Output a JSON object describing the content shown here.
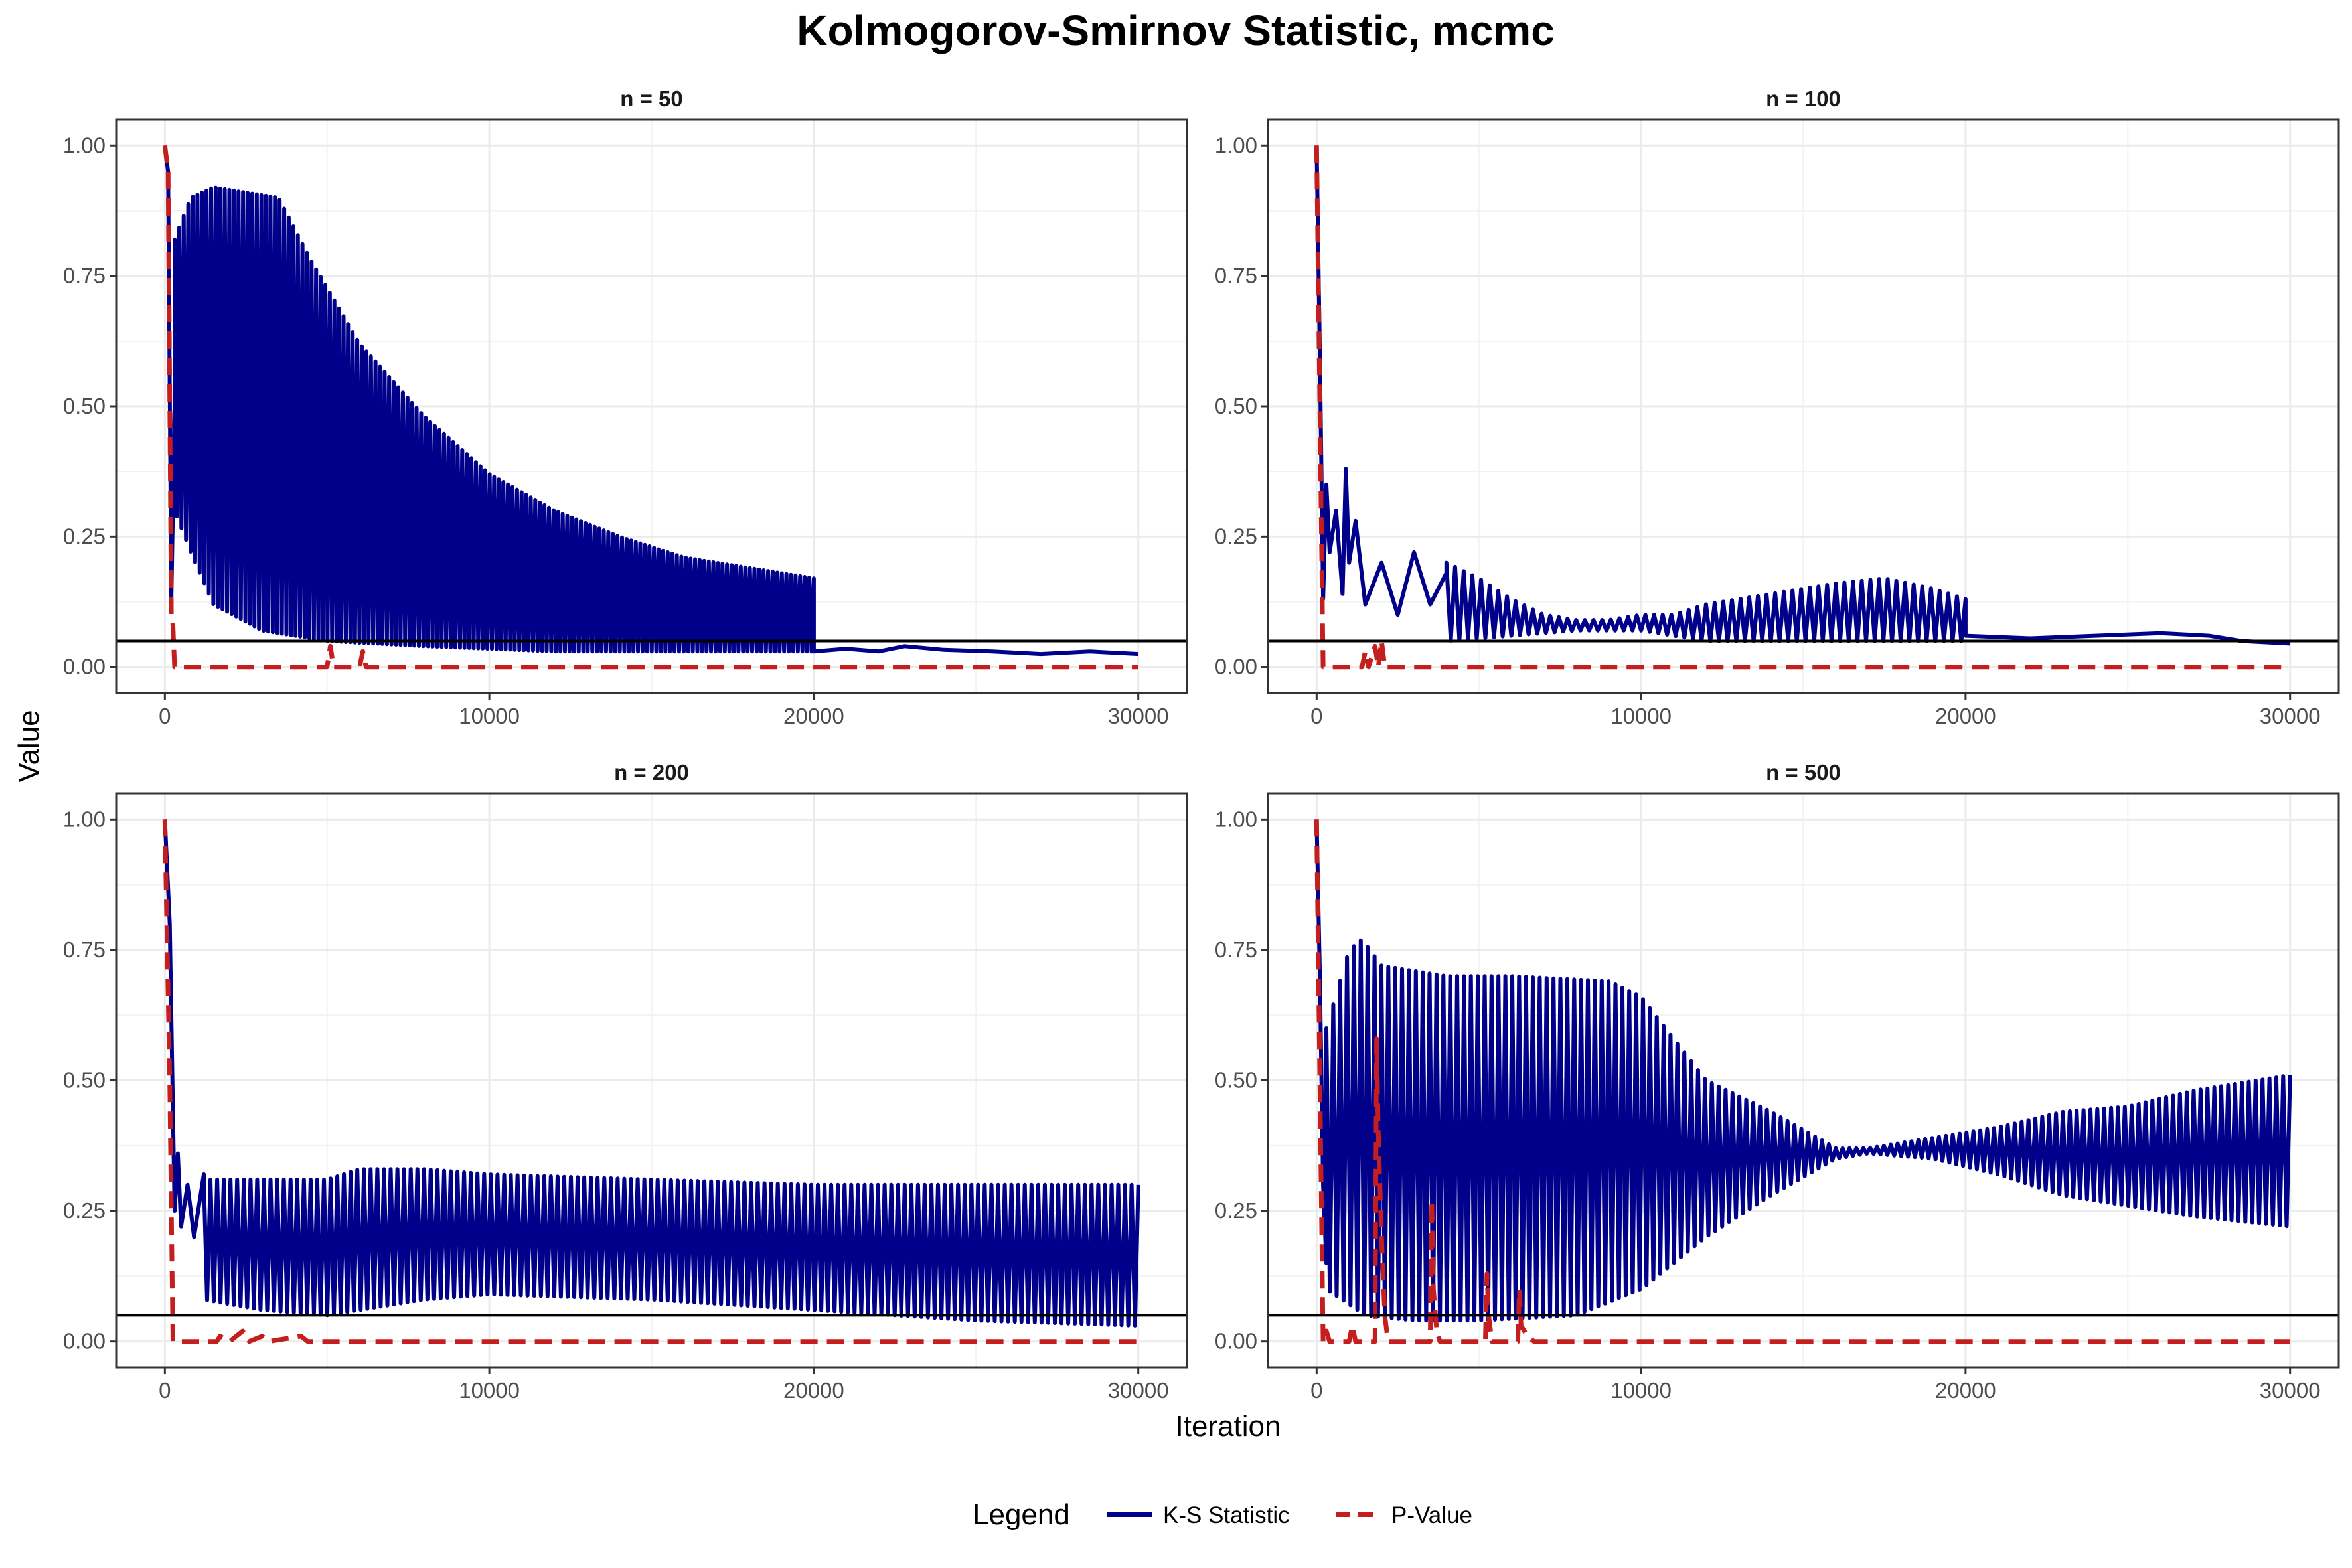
{
  "chart_data": {
    "type": "line",
    "title": "Kolmogorov-Smirnov Statistic, mcmc",
    "xlabel": "Iteration",
    "ylabel": "Value",
    "xlim": [
      -1500,
      31500
    ],
    "ylim": [
      -0.05,
      1.05
    ],
    "x_ticks": [
      0,
      10000,
      20000,
      30000
    ],
    "x_tick_labels": [
      "0",
      "10000",
      "20000",
      "30000"
    ],
    "y_ticks": [
      0,
      0.25,
      0.5,
      0.75,
      1.0
    ],
    "y_tick_labels": [
      "0.00",
      "0.25",
      "0.50",
      "0.75",
      "1.00"
    ],
    "hline": 0.05,
    "grid": true,
    "legend": {
      "title": "Legend",
      "position": "bottom",
      "entries": [
        {
          "label": "K-S Statistic",
          "color": "#00008B",
          "dash": "solid"
        },
        {
          "label": "P-Value",
          "color": "#C41E1E",
          "dash": "dashed"
        }
      ]
    },
    "panels": [
      {
        "label": "n = 50",
        "ks_first": [
          [
            0,
            1.0
          ],
          [
            100,
            0.95
          ],
          [
            200,
            0.13
          ],
          [
            300,
            0.5
          ]
        ],
        "ks_band": {
          "start": 300,
          "end": 20000,
          "cycles": 140,
          "upper": [
            [
              300,
              0.82
            ],
            [
              800,
              0.9
            ],
            [
              1500,
              0.92
            ],
            [
              3500,
              0.9
            ],
            [
              4500,
              0.78
            ],
            [
              6000,
              0.62
            ],
            [
              8000,
              0.48
            ],
            [
              10000,
              0.37
            ],
            [
              12000,
              0.3
            ],
            [
              14000,
              0.25
            ],
            [
              16000,
              0.21
            ],
            [
              18000,
              0.19
            ],
            [
              20000,
              0.17
            ]
          ],
          "lower": [
            [
              300,
              0.3
            ],
            [
              800,
              0.22
            ],
            [
              1500,
              0.12
            ],
            [
              3000,
              0.07
            ],
            [
              5000,
              0.05
            ],
            [
              8000,
              0.04
            ],
            [
              12000,
              0.03
            ],
            [
              20000,
              0.03
            ]
          ]
        },
        "ks_tail": [
          [
            20000,
            0.03
          ],
          [
            21000,
            0.035
          ],
          [
            22000,
            0.03
          ],
          [
            22800,
            0.04
          ],
          [
            24000,
            0.033
          ],
          [
            25500,
            0.03
          ],
          [
            27000,
            0.025
          ],
          [
            28500,
            0.03
          ],
          [
            30000,
            0.025
          ]
        ],
        "pvalue": [
          [
            0,
            1.0
          ],
          [
            100,
            0.95
          ],
          [
            200,
            0.1
          ],
          [
            250,
            0.08
          ],
          [
            300,
            0.0
          ],
          [
            5000,
            0.0
          ],
          [
            5100,
            0.04
          ],
          [
            5200,
            0.0
          ],
          [
            6000,
            0.0
          ],
          [
            6100,
            0.03
          ],
          [
            6200,
            0.0
          ],
          [
            30000,
            0.0
          ]
        ]
      },
      {
        "label": "n = 100",
        "ks_first": [
          [
            0,
            1.0
          ],
          [
            100,
            0.6
          ],
          [
            200,
            0.13
          ],
          [
            300,
            0.35
          ],
          [
            400,
            0.22
          ],
          [
            600,
            0.3
          ],
          [
            800,
            0.14
          ],
          [
            900,
            0.38
          ],
          [
            1000,
            0.2
          ],
          [
            1200,
            0.28
          ],
          [
            1500,
            0.12
          ],
          [
            2000,
            0.2
          ],
          [
            2500,
            0.1
          ],
          [
            3000,
            0.22
          ],
          [
            3500,
            0.12
          ],
          [
            4000,
            0.18
          ]
        ],
        "ks_band": {
          "start": 4000,
          "end": 20000,
          "cycles": 60,
          "upper": [
            [
              4000,
              0.2
            ],
            [
              5000,
              0.17
            ],
            [
              6000,
              0.13
            ],
            [
              7000,
              0.1
            ],
            [
              8000,
              0.09
            ],
            [
              9000,
              0.09
            ],
            [
              10000,
              0.1
            ],
            [
              11000,
              0.1
            ],
            [
              12000,
              0.12
            ],
            [
              14000,
              0.14
            ],
            [
              16000,
              0.16
            ],
            [
              17500,
              0.17
            ],
            [
              19000,
              0.15
            ],
            [
              20000,
              0.13
            ]
          ],
          "lower": [
            [
              4000,
              0.05
            ],
            [
              6000,
              0.06
            ],
            [
              8000,
              0.07
            ],
            [
              10000,
              0.07
            ],
            [
              12000,
              0.05
            ],
            [
              14000,
              0.05
            ],
            [
              16000,
              0.05
            ],
            [
              18000,
              0.05
            ],
            [
              20000,
              0.05
            ]
          ]
        },
        "ks_tail": [
          [
            20000,
            0.06
          ],
          [
            22000,
            0.055
          ],
          [
            24000,
            0.06
          ],
          [
            26000,
            0.065
          ],
          [
            27500,
            0.06
          ],
          [
            28500,
            0.05
          ],
          [
            30000,
            0.045
          ]
        ],
        "pvalue": [
          [
            0,
            1.0
          ],
          [
            100,
            0.5
          ],
          [
            200,
            0.0
          ],
          [
            1400,
            0.0
          ],
          [
            1500,
            0.03
          ],
          [
            1600,
            0.0
          ],
          [
            1800,
            0.04
          ],
          [
            1900,
            0.0
          ],
          [
            2000,
            0.05
          ],
          [
            2100,
            0.0
          ],
          [
            30000,
            0.0
          ]
        ]
      },
      {
        "label": "n = 200",
        "ks_first": [
          [
            0,
            1.0
          ],
          [
            150,
            0.8
          ],
          [
            300,
            0.25
          ],
          [
            400,
            0.36
          ],
          [
            500,
            0.22
          ],
          [
            700,
            0.3
          ],
          [
            900,
            0.2
          ],
          [
            1200,
            0.32
          ]
        ],
        "ks_band": {
          "start": 1200,
          "end": 30000,
          "cycles": 140,
          "upper": [
            [
              1200,
              0.31
            ],
            [
              3000,
              0.31
            ],
            [
              5000,
              0.31
            ],
            [
              6000,
              0.33
            ],
            [
              8000,
              0.33
            ],
            [
              10000,
              0.32
            ],
            [
              15000,
              0.31
            ],
            [
              20000,
              0.3
            ],
            [
              25000,
              0.3
            ],
            [
              30000,
              0.3
            ]
          ],
          "lower": [
            [
              1200,
              0.08
            ],
            [
              3000,
              0.06
            ],
            [
              5000,
              0.05
            ],
            [
              6000,
              0.06
            ],
            [
              8000,
              0.08
            ],
            [
              10000,
              0.09
            ],
            [
              15000,
              0.08
            ],
            [
              20000,
              0.06
            ],
            [
              25000,
              0.04
            ],
            [
              30000,
              0.03
            ]
          ]
        },
        "ks_tail": [],
        "pvalue": [
          [
            0,
            1.0
          ],
          [
            150,
            0.5
          ],
          [
            250,
            0.0
          ],
          [
            1600,
            0.0
          ],
          [
            1700,
            0.01
          ],
          [
            2000,
            0.0
          ],
          [
            2400,
            0.02
          ],
          [
            2600,
            0.0
          ],
          [
            3000,
            0.01
          ],
          [
            3200,
            0.0
          ],
          [
            4200,
            0.01
          ],
          [
            4400,
            0.0
          ],
          [
            30000,
            0.0
          ]
        ]
      },
      {
        "label": "n = 500",
        "ks_first": [
          [
            0,
            1.0
          ],
          [
            100,
            0.7
          ],
          [
            200,
            0.3
          ],
          [
            300,
            0.15
          ]
        ],
        "ks_band": {
          "start": 300,
          "end": 30000,
          "cycles": 140,
          "upper": [
            [
              300,
              0.6
            ],
            [
              1000,
              0.75
            ],
            [
              1400,
              0.77
            ],
            [
              2000,
              0.72
            ],
            [
              4000,
              0.7
            ],
            [
              6000,
              0.7
            ],
            [
              9000,
              0.69
            ],
            [
              10000,
              0.66
            ],
            [
              12000,
              0.5
            ],
            [
              14000,
              0.44
            ],
            [
              16000,
              0.37
            ],
            [
              17000,
              0.37
            ],
            [
              19000,
              0.39
            ],
            [
              21000,
              0.41
            ],
            [
              23000,
              0.44
            ],
            [
              25000,
              0.45
            ],
            [
              27000,
              0.48
            ],
            [
              30000,
              0.51
            ]
          ],
          "lower": [
            [
              300,
              0.1
            ],
            [
              1500,
              0.05
            ],
            [
              3000,
              0.04
            ],
            [
              5000,
              0.04
            ],
            [
              8000,
              0.05
            ],
            [
              10000,
              0.1
            ],
            [
              12000,
              0.2
            ],
            [
              14000,
              0.28
            ],
            [
              16000,
              0.35
            ],
            [
              17000,
              0.36
            ],
            [
              19000,
              0.35
            ],
            [
              21000,
              0.32
            ],
            [
              23000,
              0.28
            ],
            [
              25000,
              0.26
            ],
            [
              27000,
              0.24
            ],
            [
              30000,
              0.22
            ]
          ]
        },
        "ks_tail": [],
        "pvalue": [
          [
            0,
            1.0
          ],
          [
            100,
            0.5
          ],
          [
            200,
            0.0
          ],
          [
            300,
            0.02
          ],
          [
            400,
            0.0
          ],
          [
            1000,
            0.0
          ],
          [
            1100,
            0.03
          ],
          [
            1200,
            0.0
          ],
          [
            1800,
            0.0
          ],
          [
            1850,
            0.58
          ],
          [
            1900,
            0.4
          ],
          [
            2000,
            0.2
          ],
          [
            2100,
            0.05
          ],
          [
            2200,
            0.0
          ],
          [
            3500,
            0.0
          ],
          [
            3550,
            0.27
          ],
          [
            3600,
            0.1
          ],
          [
            3700,
            0.02
          ],
          [
            3800,
            0.0
          ],
          [
            5200,
            0.0
          ],
          [
            5250,
            0.13
          ],
          [
            5300,
            0.05
          ],
          [
            5400,
            0.0
          ],
          [
            6200,
            0.0
          ],
          [
            6250,
            0.1
          ],
          [
            6300,
            0.03
          ],
          [
            6500,
            0.01
          ],
          [
            6700,
            0.0
          ],
          [
            30000,
            0.0
          ]
        ]
      }
    ]
  }
}
